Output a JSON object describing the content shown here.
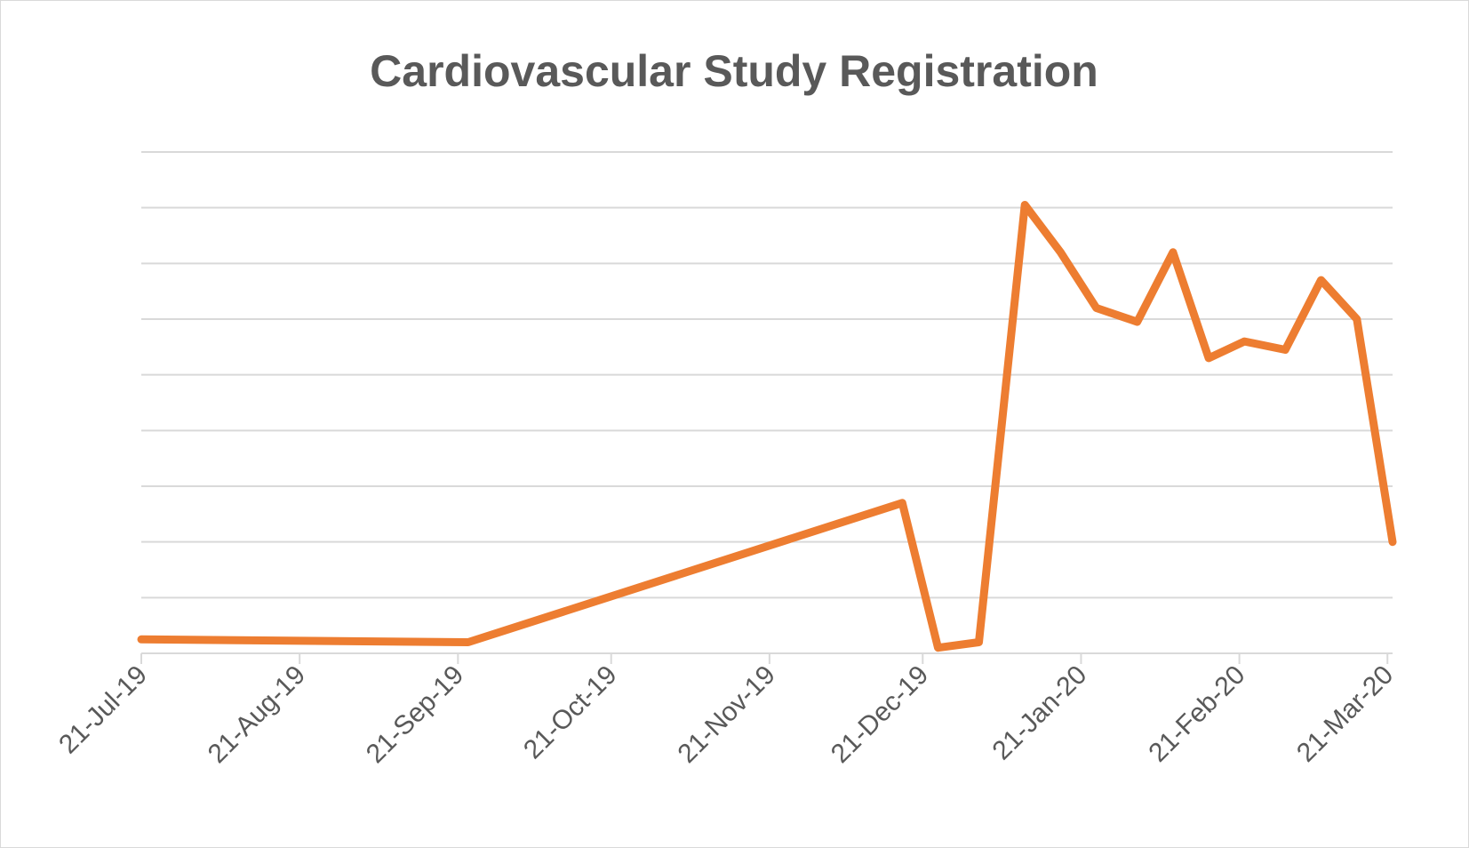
{
  "chart_data": {
    "type": "line",
    "title": "Cardiovascular Study Registration",
    "xlabel": "",
    "ylabel": "",
    "x_tick_labels": [
      "21-Jul-19",
      "21-Aug-19",
      "21-Sep-19",
      "21-Oct-19",
      "21-Nov-19",
      "21-Dec-19",
      "21-Jan-20",
      "21-Feb-20",
      "21-Mar-20"
    ],
    "x_tick_dates": [
      "2019-07-21",
      "2019-08-21",
      "2019-09-21",
      "2019-10-21",
      "2019-11-21",
      "2019-12-21",
      "2020-01-21",
      "2020-02-21",
      "2020-03-21"
    ],
    "xlim": [
      "2019-07-21",
      "2020-03-22"
    ],
    "ylim": [
      0,
      9
    ],
    "y_gridlines": 9,
    "y_tick_labels_shown": false,
    "grid": true,
    "legend": "none",
    "series": [
      {
        "color": "#ED7D31",
        "x": [
          "2019-07-21",
          "2019-09-23",
          "2019-12-17",
          "2019-12-24",
          "2020-01-01",
          "2020-01-10",
          "2020-01-17",
          "2020-01-24",
          "2020-02-01",
          "2020-02-08",
          "2020-02-15",
          "2020-02-22",
          "2020-03-01",
          "2020-03-08",
          "2020-03-15",
          "2020-03-22"
        ],
        "y": [
          0.25,
          0.2,
          2.7,
          0.1,
          0.2,
          8.05,
          7.2,
          6.2,
          5.95,
          7.2,
          5.3,
          5.6,
          5.45,
          6.7,
          6.0,
          2.0
        ]
      }
    ]
  }
}
